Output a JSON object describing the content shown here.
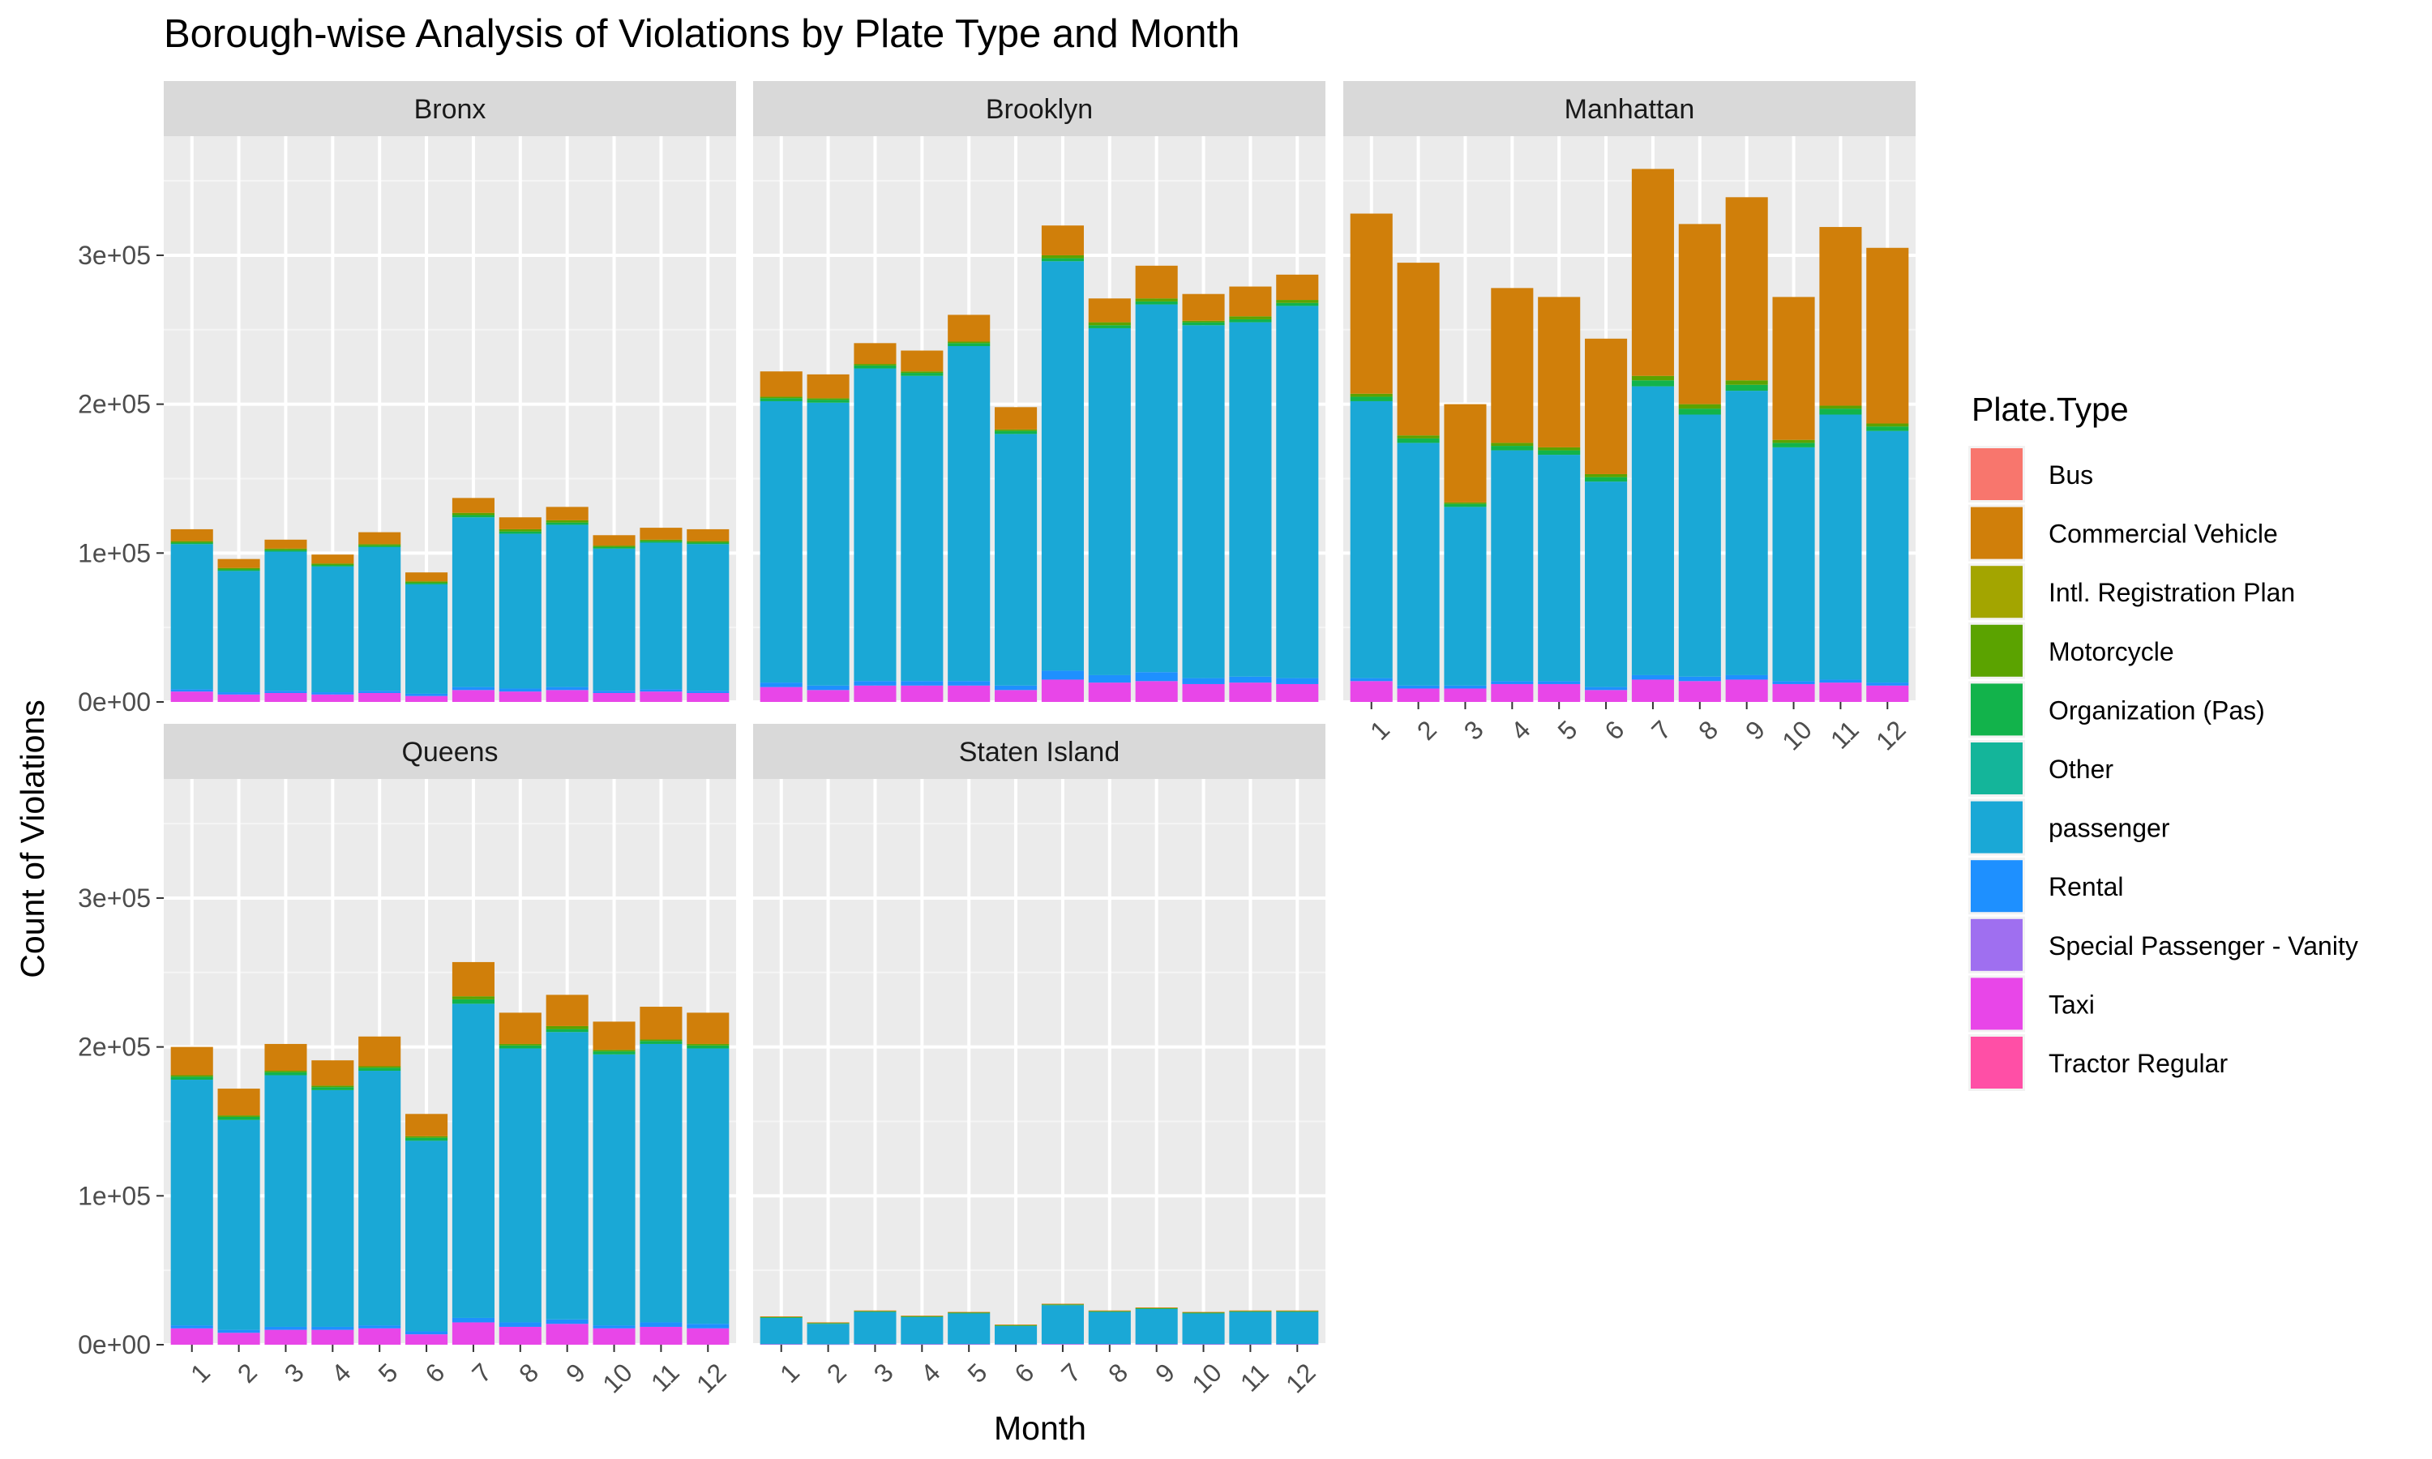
{
  "chart_data": {
    "type": "bar",
    "stacked": true,
    "title": "Borough-wise Analysis of Violations by Plate Type and Month",
    "xlabel": "Month",
    "ylabel": "Count of Violations",
    "ylim": [
      0,
      380000
    ],
    "y_ticks": [
      0,
      100000,
      200000,
      300000
    ],
    "y_tick_labels": [
      "0e+00",
      "1e+05",
      "2e+05",
      "3e+05"
    ],
    "categories": [
      "1",
      "2",
      "3",
      "4",
      "5",
      "6",
      "7",
      "8",
      "9",
      "10",
      "11",
      "12"
    ],
    "grid": true,
    "legend": {
      "title": "Plate.Type",
      "position": "right",
      "entries": [
        {
          "name": "Bus",
          "color": "#F8766D"
        },
        {
          "name": "Commercial Vehicle",
          "color": "#D07F0A"
        },
        {
          "name": "Intl. Registration Plan",
          "color": "#A3A500"
        },
        {
          "name": "Motorcycle",
          "color": "#5BA300"
        },
        {
          "name": "Organization (Pas)",
          "color": "#12B34B"
        },
        {
          "name": "Other",
          "color": "#14B59A"
        },
        {
          "name": "passenger",
          "color": "#1AA8D6"
        },
        {
          "name": "Rental",
          "color": "#1E90FF"
        },
        {
          "name": "Special Passenger - Vanity",
          "color": "#9F6FF0"
        },
        {
          "name": "Taxi",
          "color": "#E846E8"
        },
        {
          "name": "Tractor Regular",
          "color": "#FF4FA6"
        }
      ]
    },
    "panels": [
      {
        "name": "Bronx",
        "series": [
          {
            "name": "Taxi",
            "values": [
              7000,
              5000,
              6000,
              5000,
              6000,
              4000,
              8000,
              7000,
              8000,
              6000,
              7000,
              6000
            ]
          },
          {
            "name": "Rental",
            "values": [
              1500,
              1500,
              1500,
              1500,
              1500,
              1500,
              2000,
              2000,
              2000,
              1500,
              1500,
              1500
            ]
          },
          {
            "name": "passenger",
            "values": [
              97500,
              81500,
              93500,
              84500,
              96500,
              73500,
              114000,
              104000,
              109000,
              95500,
              98500,
              98500
            ]
          },
          {
            "name": "Organization (Pas)",
            "values": [
              1000,
              1000,
              1000,
              1000,
              1000,
              1000,
              1500,
              1500,
              1500,
              1000,
              1000,
              1000
            ]
          },
          {
            "name": "Motorcycle",
            "values": [
              1000,
              1000,
              1000,
              1000,
              1000,
              1000,
              1500,
              1500,
              1500,
              1000,
              1000,
              1000
            ]
          },
          {
            "name": "Commercial Vehicle",
            "values": [
              8000,
              6000,
              6000,
              6000,
              8000,
              6000,
              10000,
              8000,
              9000,
              7000,
              8000,
              8000
            ]
          }
        ]
      },
      {
        "name": "Brooklyn",
        "series": [
          {
            "name": "Taxi",
            "values": [
              10000,
              8000,
              11000,
              11000,
              11000,
              8000,
              15000,
              13000,
              14000,
              12000,
              13000,
              12000
            ]
          },
          {
            "name": "Rental",
            "values": [
              3000,
              3000,
              3000,
              3000,
              3000,
              3000,
              6000,
              5000,
              6000,
              4000,
              4000,
              4000
            ]
          },
          {
            "name": "passenger",
            "values": [
              189000,
              190000,
              210000,
              205000,
              225000,
              169000,
              275000,
              233000,
              247000,
              237000,
              238000,
              250000
            ]
          },
          {
            "name": "Organization (Pas)",
            "values": [
              2000,
              2000,
              2000,
              2000,
              2000,
              2000,
              2000,
              2000,
              2000,
              2000,
              2000,
              2000
            ]
          },
          {
            "name": "Motorcycle",
            "values": [
              1000,
              1000,
              1000,
              1000,
              1000,
              1000,
              2000,
              2000,
              2000,
              1000,
              2000,
              2000
            ]
          },
          {
            "name": "Commercial Vehicle",
            "values": [
              17000,
              16000,
              14000,
              14000,
              18000,
              15000,
              20000,
              16000,
              22000,
              18000,
              20000,
              17000
            ]
          }
        ]
      },
      {
        "name": "Manhattan",
        "series": [
          {
            "name": "Taxi",
            "values": [
              14000,
              9000,
              9000,
              12000,
              12000,
              8000,
              15000,
              14000,
              15000,
              12000,
              13000,
              11000
            ]
          },
          {
            "name": "Rental",
            "values": [
              2000,
              2000,
              2000,
              2000,
              2000,
              2000,
              3000,
              3000,
              3000,
              2000,
              2000,
              2000
            ]
          },
          {
            "name": "passenger",
            "values": [
              186000,
              163000,
              120000,
              155000,
              152000,
              138000,
              194000,
              176000,
              191000,
              157000,
              178000,
              169000
            ]
          },
          {
            "name": "Organization (Pas)",
            "values": [
              3000,
              3000,
              2000,
              3000,
              3000,
              3000,
              4000,
              4000,
              4000,
              3000,
              4000,
              3000
            ]
          },
          {
            "name": "Motorcycle",
            "values": [
              2000,
              2000,
              1000,
              2000,
              2000,
              2000,
              3000,
              3000,
              3000,
              2000,
              2000,
              2000
            ]
          },
          {
            "name": "Commercial Vehicle",
            "values": [
              121000,
              116000,
              66000,
              104000,
              101000,
              91000,
              139000,
              121000,
              123000,
              96000,
              120000,
              118000
            ]
          }
        ]
      },
      {
        "name": "Queens",
        "series": [
          {
            "name": "Taxi",
            "values": [
              11000,
              8000,
              10000,
              10000,
              11000,
              7000,
              15000,
              12000,
              14000,
              11000,
              12000,
              11000
            ]
          },
          {
            "name": "Rental",
            "values": [
              2000,
              2000,
              2000,
              2000,
              2000,
              2000,
              3000,
              3000,
              3000,
              2000,
              3000,
              3000
            ]
          },
          {
            "name": "passenger",
            "values": [
              165000,
              141000,
              169000,
              159000,
              171000,
              128000,
              211000,
              184000,
              193000,
              182000,
              187000,
              185000
            ]
          },
          {
            "name": "Organization (Pas)",
            "values": [
              2000,
              2000,
              2000,
              2000,
              2000,
              2000,
              3000,
              2000,
              2000,
              2000,
              2000,
              2000
            ]
          },
          {
            "name": "Motorcycle",
            "values": [
              1000,
              1000,
              1000,
              1000,
              1000,
              1000,
              2000,
              1000,
              2000,
              1000,
              1000,
              1000
            ]
          },
          {
            "name": "Commercial Vehicle",
            "values": [
              19000,
              18000,
              18000,
              17000,
              20000,
              15000,
              23000,
              21000,
              21000,
              19000,
              22000,
              21000
            ]
          }
        ]
      },
      {
        "name": "Staten Island",
        "series": [
          {
            "name": "Taxi",
            "values": [
              300,
              200,
              300,
              300,
              300,
              200,
              400,
              300,
              300,
              300,
              300,
              300
            ]
          },
          {
            "name": "passenger",
            "values": [
              17700,
              13800,
              21700,
              18200,
              20700,
              12300,
              26100,
              21700,
              23700,
              20700,
              21700,
              21700
            ]
          },
          {
            "name": "Organization (Pas)",
            "values": [
              500,
              500,
              500,
              500,
              500,
              500,
              500,
              500,
              500,
              500,
              500,
              500
            ]
          },
          {
            "name": "Commercial Vehicle",
            "values": [
              500,
              500,
              500,
              500,
              500,
              500,
              500,
              500,
              500,
              500,
              500,
              500
            ]
          }
        ]
      }
    ]
  }
}
